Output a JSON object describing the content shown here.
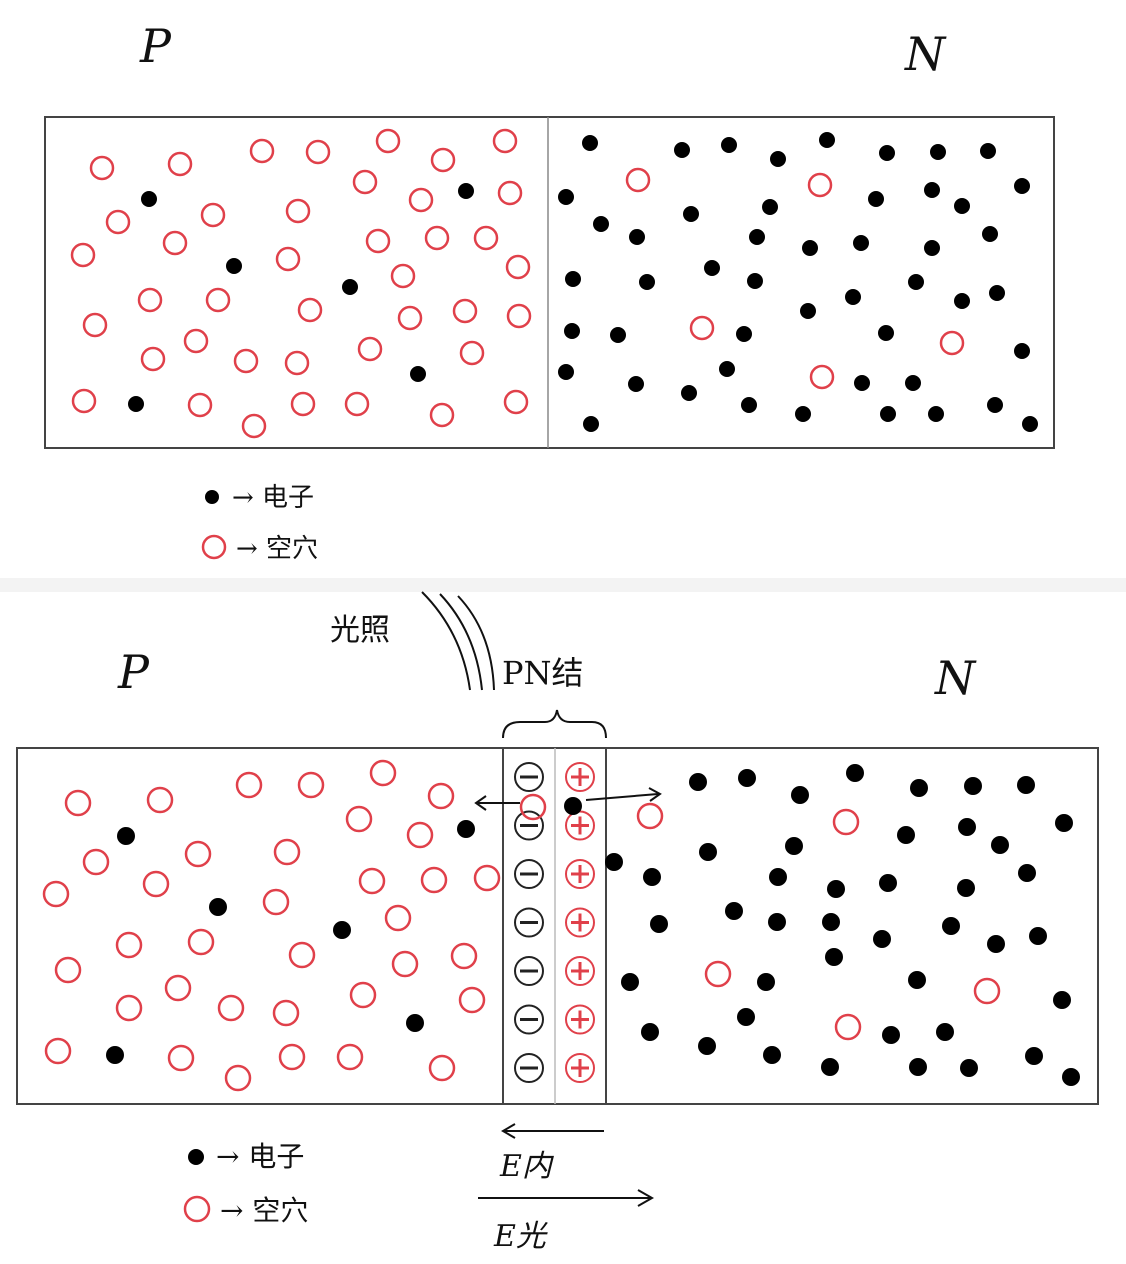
{
  "diagram1": {
    "p_label": "P",
    "n_label": "N",
    "legend": {
      "electron": "→ 电子",
      "hole": "→ 空穴"
    }
  },
  "diagram2": {
    "p_label": "P",
    "n_label": "N",
    "light_label": "光照",
    "junction_label": "PN结",
    "legend": {
      "electron": "→ 电子",
      "hole": "→ 空穴"
    },
    "e_inner": "E内",
    "e_light": "E光",
    "minus_sign": "−",
    "plus_sign": "+",
    "ion_rows": 7
  },
  "colors": {
    "hole": "#e0404a",
    "electron": "#000000",
    "frame": "#444444",
    "divider": "#f3f3f3"
  }
}
